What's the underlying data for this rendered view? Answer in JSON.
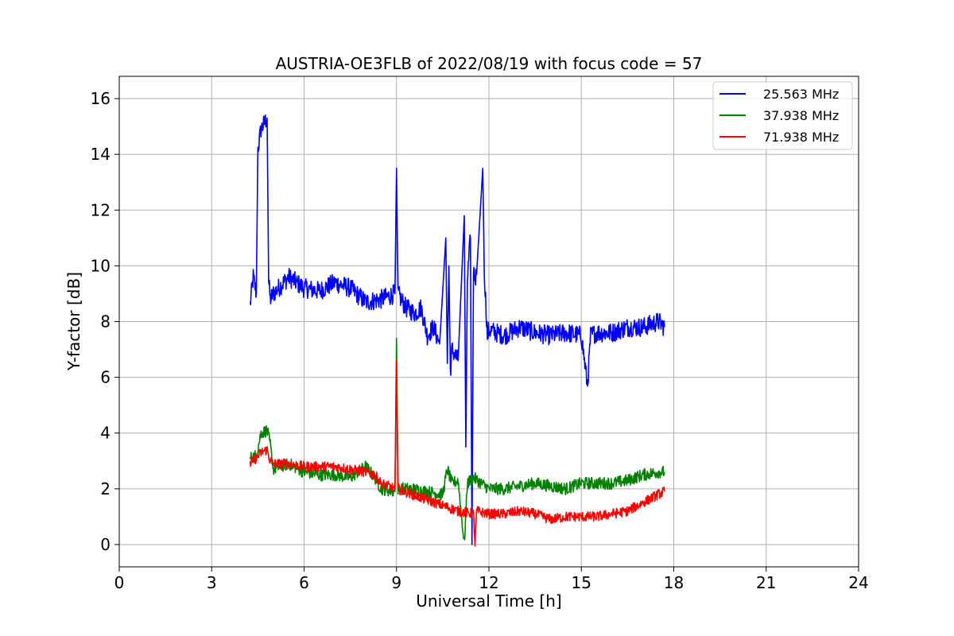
{
  "chart_data": {
    "type": "line",
    "title": "AUSTRIA-OE3FLB of 2022/08/19 with focus code = 57",
    "xlabel": "Universal Time [h]",
    "ylabel": "Y-factor [dB]",
    "xlim": [
      0,
      24
    ],
    "ylim": [
      -0.8,
      16.8
    ],
    "xticks": [
      0,
      3,
      6,
      9,
      12,
      15,
      18,
      21,
      24
    ],
    "yticks": [
      0,
      2,
      4,
      6,
      8,
      10,
      12,
      14,
      16
    ],
    "grid": true,
    "legend_position": "top-right",
    "series": [
      {
        "name": "25.563 MHz",
        "color": "#0000ff",
        "x": [
          4.25,
          4.35,
          4.45,
          4.5,
          4.55,
          4.6,
          4.7,
          4.8,
          4.85,
          4.9,
          5.0,
          5.5,
          6.0,
          6.5,
          7.0,
          7.5,
          8.0,
          8.5,
          8.95,
          9.0,
          9.05,
          9.3,
          9.6,
          9.8,
          10.0,
          10.2,
          10.4,
          10.6,
          10.65,
          10.7,
          10.75,
          10.8,
          11.0,
          11.2,
          11.25,
          11.3,
          11.4,
          11.45,
          11.5,
          11.55,
          11.6,
          11.8,
          11.85,
          11.95,
          12.0,
          12.5,
          13.0,
          13.5,
          14.0,
          14.5,
          15.0,
          15.2,
          15.3,
          15.5,
          16.0,
          16.5,
          17.0,
          17.5,
          17.7
        ],
        "y": [
          8.6,
          9.6,
          9.0,
          14.2,
          14.5,
          14.9,
          15.1,
          15.3,
          9.5,
          8.8,
          9.0,
          9.6,
          9.2,
          9.1,
          9.4,
          9.2,
          8.7,
          8.8,
          9.0,
          13.5,
          9.0,
          8.5,
          8.3,
          8.5,
          7.5,
          7.8,
          7.2,
          11.0,
          6.5,
          10.0,
          6.2,
          7.0,
          6.6,
          11.8,
          3.5,
          9.5,
          11.0,
          0.0,
          10.0,
          9.5,
          9.7,
          13.5,
          9.8,
          7.5,
          7.7,
          7.5,
          7.8,
          7.6,
          7.5,
          7.6,
          7.5,
          5.7,
          7.5,
          7.6,
          7.6,
          7.8,
          7.8,
          8.0,
          7.8
        ]
      },
      {
        "name": "37.938 MHz",
        "color": "#008000",
        "x": [
          4.25,
          4.45,
          4.6,
          4.8,
          4.9,
          5.0,
          5.5,
          6.0,
          6.5,
          7.0,
          7.5,
          8.0,
          8.3,
          8.5,
          8.95,
          9.0,
          9.05,
          9.5,
          10.0,
          10.5,
          10.65,
          10.8,
          11.0,
          11.2,
          11.3,
          11.5,
          12.0,
          12.5,
          13.0,
          13.5,
          14.0,
          14.5,
          15.0,
          15.5,
          16.0,
          16.5,
          17.0,
          17.5,
          17.7
        ],
        "y": [
          3.1,
          3.2,
          4.0,
          4.1,
          3.6,
          2.7,
          2.9,
          2.6,
          2.5,
          2.5,
          2.4,
          2.8,
          2.4,
          2.0,
          1.9,
          7.4,
          2.0,
          2.0,
          1.9,
          1.8,
          2.7,
          2.2,
          2.3,
          0.0,
          2.2,
          2.4,
          2.0,
          2.0,
          2.1,
          2.2,
          2.1,
          2.0,
          2.2,
          2.2,
          2.2,
          2.3,
          2.5,
          2.6,
          2.6
        ]
      },
      {
        "name": "71.938 MHz",
        "color": "#ff0000",
        "x": [
          4.25,
          4.45,
          4.6,
          4.8,
          4.9,
          5.0,
          5.5,
          6.0,
          6.5,
          7.0,
          7.5,
          8.0,
          8.3,
          8.5,
          8.95,
          9.0,
          9.05,
          9.5,
          10.0,
          10.5,
          11.0,
          11.5,
          11.55,
          11.6,
          12.0,
          12.5,
          13.0,
          13.5,
          14.0,
          14.5,
          15.0,
          15.5,
          16.0,
          16.5,
          17.0,
          17.5,
          17.7
        ],
        "y": [
          2.9,
          3.1,
          3.3,
          3.4,
          3.0,
          2.9,
          2.9,
          2.8,
          2.8,
          2.8,
          2.7,
          2.6,
          2.5,
          2.2,
          2.0,
          6.6,
          2.0,
          1.8,
          1.6,
          1.4,
          1.2,
          1.1,
          0.0,
          1.2,
          1.1,
          1.1,
          1.2,
          1.1,
          0.9,
          1.0,
          1.0,
          1.0,
          1.1,
          1.2,
          1.5,
          1.8,
          1.9
        ]
      }
    ]
  }
}
